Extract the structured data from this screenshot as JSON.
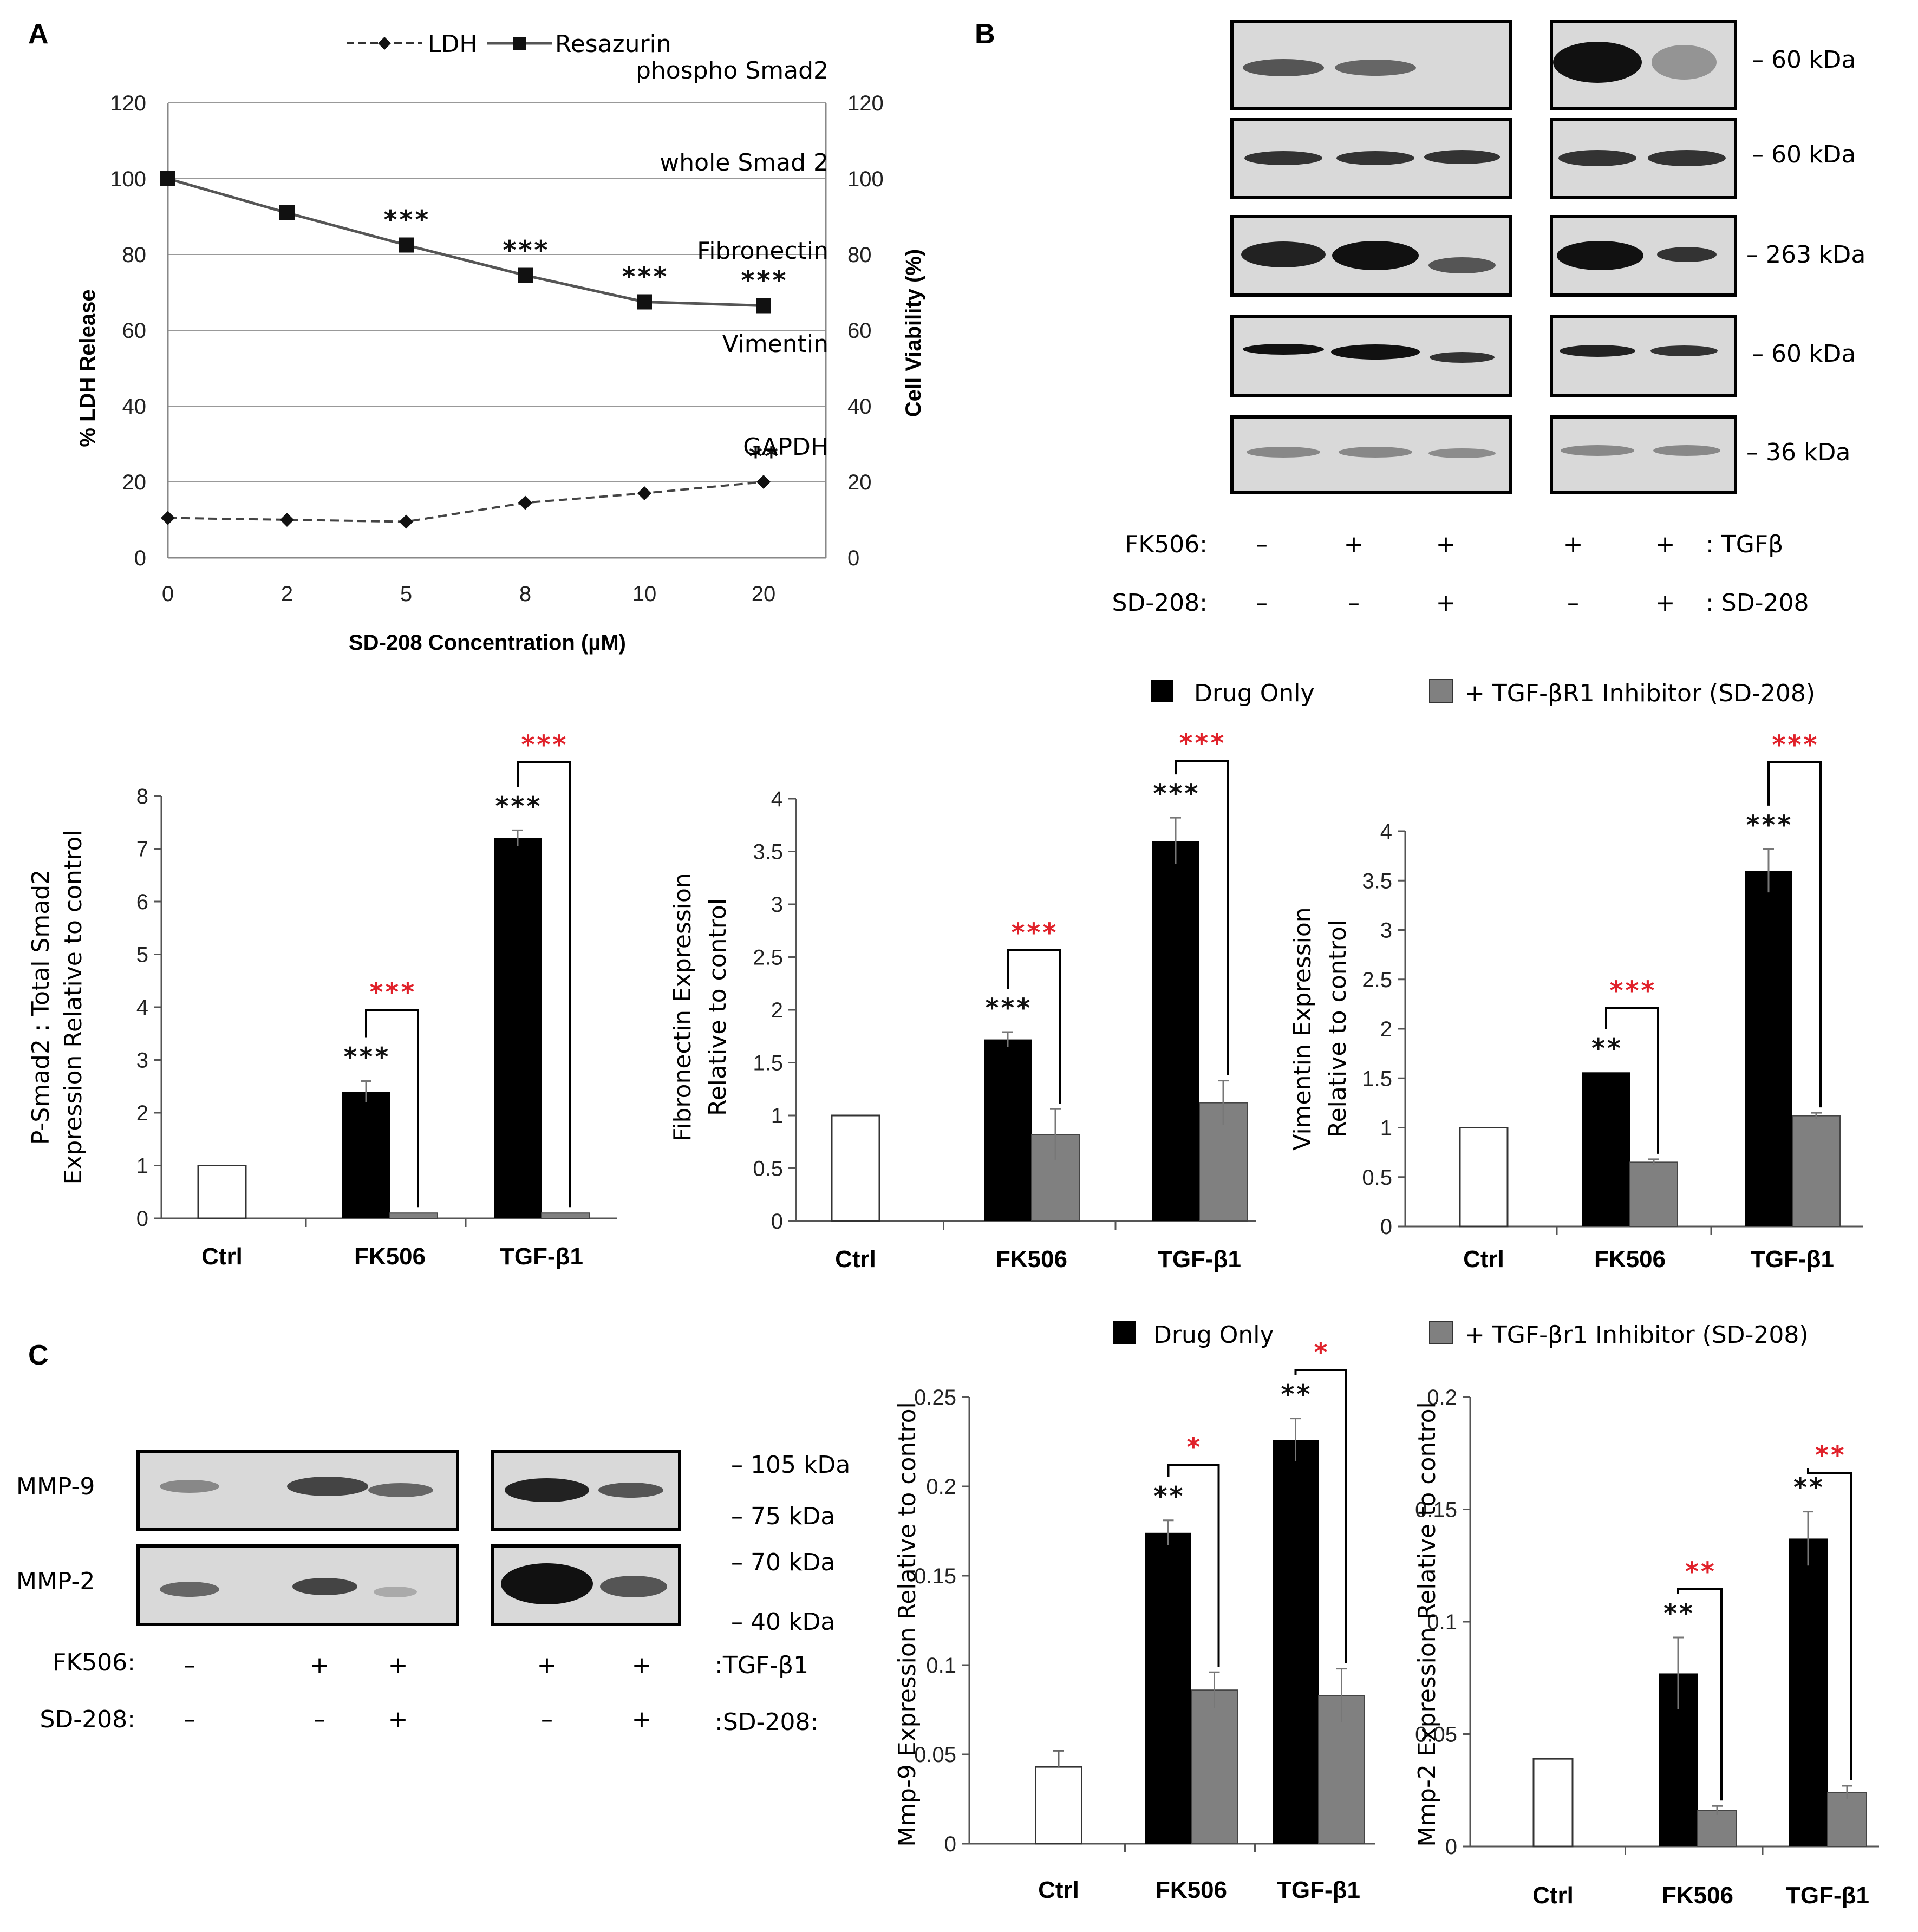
{
  "panel_labels": {
    "a": "A",
    "b": "B",
    "c": "C"
  },
  "panelA": {
    "legend": [
      {
        "name": "LDH",
        "style": "dashed"
      },
      {
        "name": "Resazurin",
        "style": "solid"
      }
    ],
    "yleft_label": "% LDH Release",
    "yright_label": "Cell Viability (%)",
    "xlabel": "SD-208 Concentration (µM)"
  },
  "panelB": {
    "rows": [
      {
        "label": "phospho Smad2",
        "kda": "– 60 kDa"
      },
      {
        "label": "whole Smad 2",
        "kda": "– 60 kDa"
      },
      {
        "label": "Fibronectin",
        "kda": "– 263 kDa"
      },
      {
        "label": "Vimentin",
        "kda": "– 60 kDa"
      },
      {
        "label": "GAPDH",
        "kda": "– 36 kDa"
      }
    ],
    "treat": [
      {
        "label": "FK506:",
        "signs": [
          "–",
          "+",
          "+",
          "+",
          "+"
        ],
        "suffix": ": TGFβ"
      },
      {
        "label": "SD-208:",
        "signs": [
          "–",
          "–",
          "+",
          "–",
          "+"
        ],
        "suffix": ": SD-208"
      }
    ],
    "legend": {
      "drug": "Drug Only",
      "inhib": "+ TGF-βR1 Inhibitor (SD-208)"
    }
  },
  "panelC": {
    "rows": [
      {
        "label": "MMP-9",
        "kda_top": "– 105 kDa",
        "kda_bot": "– 75 kDa"
      },
      {
        "label": "MMP-2",
        "kda_top": "– 70 kDa",
        "kda_bot": "– 40 kDa"
      }
    ],
    "treat": [
      {
        "label": "FK506:",
        "signs": [
          "–",
          "+",
          "+",
          "+",
          "+"
        ],
        "suffix": ":TGF-β1"
      },
      {
        "label": "SD-208:",
        "signs": [
          "–",
          "–",
          "+",
          "–",
          "+"
        ],
        "suffix": ":SD-208:"
      }
    ],
    "legend": {
      "drug": "Drug Only",
      "inhib": "+ TGF-βr1 Inhibitor (SD-208)"
    }
  },
  "chart_data": [
    {
      "type": "line",
      "id": "A",
      "x": [
        "0",
        "2",
        "5",
        "8",
        "10",
        "20"
      ],
      "series": [
        {
          "name": "LDH",
          "values": [
            10.5,
            10,
            9.5,
            14.5,
            17,
            20
          ],
          "stars": [
            "",
            "",
            "",
            "",
            "",
            "**"
          ]
        },
        {
          "name": "Resazurin",
          "values": [
            100,
            91,
            82.5,
            74.5,
            67.5,
            66.5
          ],
          "stars": [
            "",
            "",
            "***",
            "***",
            "***",
            "***"
          ]
        }
      ],
      "xlabel": "SD-208 Concentration (µM)",
      "ylabel": "% LDH Release",
      "y2label": "Cell Viability (%)",
      "ylim": [
        0,
        120
      ],
      "yticks": [
        "0",
        "20",
        "40",
        "60",
        "80",
        "100",
        "120"
      ]
    },
    {
      "type": "bar",
      "id": "psmad",
      "categories": [
        "Ctrl",
        "FK506",
        "TGF-β1"
      ],
      "series": [
        {
          "name": "Drug Only",
          "values": [
            1,
            2.4,
            7.2
          ],
          "err": [
            0,
            0.2,
            0.15
          ]
        },
        {
          "name": "+ TGF-βR1 Inhibitor (SD-208)",
          "values": [
            null,
            0.1,
            0.1
          ],
          "err": [
            0,
            0,
            0
          ]
        }
      ],
      "ylabel": [
        "P-Smad2 : Total Smad2",
        "Expression Relative to control"
      ],
      "ylim": [
        0,
        8
      ],
      "yticks": [
        "0",
        "1",
        "2",
        "3",
        "4",
        "5",
        "6",
        "7",
        "8"
      ],
      "stars_black": [
        "",
        "***",
        "***"
      ],
      "stars_red": [
        "",
        "***",
        "***"
      ]
    },
    {
      "type": "bar",
      "id": "fibro",
      "categories": [
        "Ctrl",
        "FK506",
        "TGF-β1"
      ],
      "series": [
        {
          "name": "Drug Only",
          "values": [
            1,
            1.72,
            3.6
          ],
          "err": [
            0,
            0.07,
            0.22
          ]
        },
        {
          "name": "+ TGF-βR1 Inhibitor (SD-208)",
          "values": [
            null,
            0.82,
            1.12
          ],
          "err": [
            0,
            0.24,
            0.21
          ]
        }
      ],
      "ylabel": [
        "Fibronectin Expression",
        "Relative to control"
      ],
      "ylim": [
        0,
        4
      ],
      "yticks": [
        "0",
        "0.5",
        "1",
        "1.5",
        "2",
        "2.5",
        "3",
        "3.5",
        "4"
      ],
      "stars_black": [
        "",
        "***",
        "***"
      ],
      "stars_red": [
        "",
        "***",
        "***"
      ]
    },
    {
      "type": "bar",
      "id": "vim",
      "categories": [
        "Ctrl",
        "FK506",
        "TGF-β1"
      ],
      "series": [
        {
          "name": "Drug Only",
          "values": [
            1,
            1.56,
            3.6
          ],
          "err": [
            0,
            0,
            0.22
          ]
        },
        {
          "name": "+ TGF-βR1 Inhibitor (SD-208)",
          "values": [
            null,
            0.65,
            1.12
          ],
          "err": [
            0,
            0.03,
            0.03
          ]
        }
      ],
      "ylabel": [
        "Vimentin Expression",
        "Relative to control"
      ],
      "ylim": [
        0,
        4
      ],
      "yticks": [
        "0",
        "0.5",
        "1",
        "1.5",
        "2",
        "2.5",
        "3",
        "3.5",
        "4"
      ],
      "stars_black": [
        "",
        "**",
        "***"
      ],
      "stars_red": [
        "",
        "***",
        "***"
      ]
    },
    {
      "type": "bar",
      "id": "mmp9",
      "categories": [
        "Ctrl",
        "FK506",
        "TGF-β1"
      ],
      "series": [
        {
          "name": "Drug Only",
          "values": [
            0.043,
            0.174,
            0.226
          ],
          "err": [
            0.009,
            0.007,
            0.012
          ]
        },
        {
          "name": "+ TGF-βr1 Inhibitor (SD-208)",
          "values": [
            null,
            0.086,
            0.083
          ],
          "err": [
            0,
            0.01,
            0.015
          ]
        }
      ],
      "ylabel": [
        "Mmp-9 Expression Relative to control"
      ],
      "ylim": [
        0,
        0.25
      ],
      "yticks": [
        "0",
        "0.05",
        "0.1",
        "0.15",
        "0.2",
        "0.25"
      ],
      "stars_black": [
        "",
        "**",
        "**"
      ],
      "stars_red": [
        "",
        "*",
        "*"
      ]
    },
    {
      "type": "bar",
      "id": "mmp2",
      "categories": [
        "Ctrl",
        "FK506",
        "TGF-β1"
      ],
      "series": [
        {
          "name": "Drug Only",
          "values": [
            0.039,
            0.077,
            0.137
          ],
          "err": [
            0,
            0.016,
            0.012
          ]
        },
        {
          "name": "+ TGF-βr1 Inhibitor (SD-208)",
          "values": [
            null,
            0.016,
            0.024
          ],
          "err": [
            0,
            0.002,
            0.003
          ]
        }
      ],
      "ylabel": [
        "Mmp-2 Expression Relative to control"
      ],
      "ylim": [
        0,
        0.2
      ],
      "yticks": [
        "0",
        "0.05",
        "0.1",
        "0.15",
        "0.2"
      ],
      "stars_black": [
        "",
        "**",
        "**"
      ],
      "stars_red": [
        "",
        "**",
        "**"
      ]
    }
  ]
}
